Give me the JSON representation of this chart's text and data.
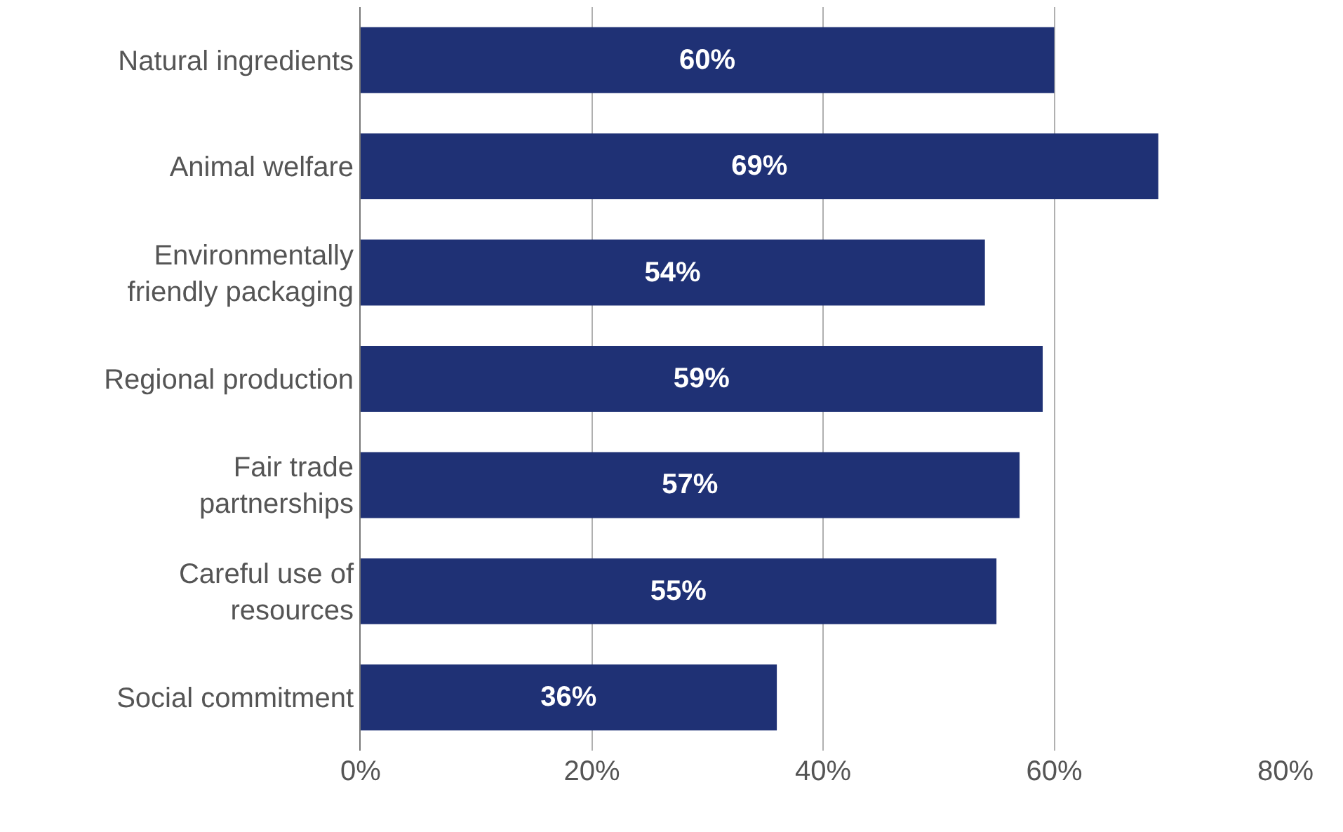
{
  "chart_data": {
    "type": "bar",
    "orientation": "horizontal",
    "categories": [
      "Natural ingredients",
      "Animal welfare",
      "Environmentally friendly packaging",
      "Regional production",
      "Fair trade partnerships",
      "Careful use of resources",
      "Social commitment"
    ],
    "values": [
      60,
      69,
      54,
      59,
      57,
      55,
      36
    ],
    "value_labels": [
      "60%",
      "69%",
      "54%",
      "59%",
      "57%",
      "55%",
      "36%"
    ],
    "color": "#1f3175",
    "xlim": [
      0,
      80
    ],
    "xticks": [
      {
        "value": 0,
        "label": "0%"
      },
      {
        "value": 20,
        "label": "20%"
      },
      {
        "value": 40,
        "label": "40%"
      },
      {
        "value": 60,
        "label": "60%"
      },
      {
        "value": 80,
        "label": "80%"
      }
    ],
    "grid": "x",
    "legend": false
  }
}
